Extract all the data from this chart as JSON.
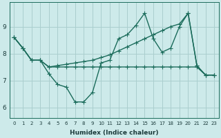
{
  "xlabel": "Humidex (Indice chaleur)",
  "background_color": "#cdeaea",
  "grid_color": "#aacece",
  "line_color": "#1a6b5a",
  "x_values": [
    0,
    1,
    2,
    3,
    4,
    5,
    6,
    7,
    8,
    9,
    10,
    11,
    12,
    13,
    14,
    15,
    16,
    17,
    18,
    19,
    20,
    21,
    22,
    23
  ],
  "series1": [
    8.6,
    8.2,
    7.75,
    7.75,
    7.25,
    6.85,
    6.75,
    6.2,
    6.2,
    6.55,
    7.65,
    7.75,
    8.55,
    8.7,
    9.05,
    9.5,
    8.55,
    8.05,
    8.2,
    9.0,
    9.5,
    7.55,
    7.2,
    7.2
  ],
  "series2": [
    8.6,
    8.2,
    7.75,
    7.75,
    7.5,
    7.5,
    7.5,
    7.5,
    7.5,
    7.5,
    7.5,
    7.5,
    7.5,
    7.5,
    7.5,
    7.5,
    7.5,
    7.5,
    7.5,
    7.5,
    7.5,
    7.5,
    7.2,
    7.2
  ],
  "series3": [
    8.6,
    8.2,
    7.75,
    7.75,
    7.5,
    7.55,
    7.6,
    7.65,
    7.7,
    7.75,
    7.85,
    7.95,
    8.1,
    8.25,
    8.4,
    8.55,
    8.7,
    8.85,
    9.0,
    9.1,
    9.5,
    7.55,
    7.2,
    7.2
  ],
  "ylim": [
    5.6,
    9.9
  ],
  "xlim": [
    -0.5,
    23.5
  ],
  "yticks": [
    6,
    7,
    8,
    9
  ],
  "xticks": [
    0,
    1,
    2,
    3,
    4,
    5,
    6,
    7,
    8,
    9,
    10,
    11,
    12,
    13,
    14,
    15,
    16,
    17,
    18,
    19,
    20,
    21,
    22,
    23
  ],
  "markersize": 2.5,
  "linewidth": 1.0
}
